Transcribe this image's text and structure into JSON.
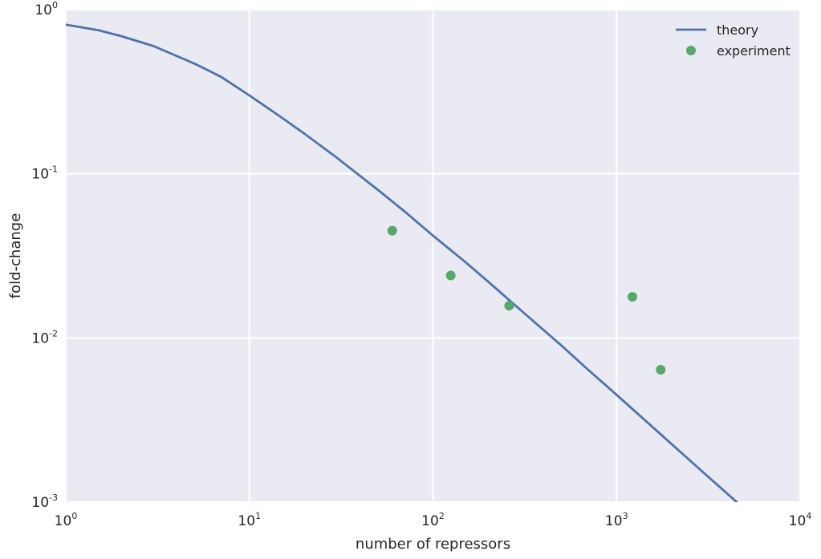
{
  "chart_data": {
    "type": "line",
    "xlabel": "number of repressors",
    "ylabel": "fold-change",
    "xscale": "log",
    "yscale": "log",
    "xlim": [
      1,
      10000
    ],
    "ylim": [
      0.001,
      1
    ],
    "grid": true,
    "legend_position": "top-right",
    "x_ticks": [
      {
        "base": "10",
        "exp": "0"
      },
      {
        "base": "10",
        "exp": "1"
      },
      {
        "base": "10",
        "exp": "2"
      },
      {
        "base": "10",
        "exp": "3"
      },
      {
        "base": "10",
        "exp": "4"
      }
    ],
    "y_ticks": [
      {
        "base": "10",
        "exp": "-3"
      },
      {
        "base": "10",
        "exp": "-2"
      },
      {
        "base": "10",
        "exp": "-1"
      },
      {
        "base": "10",
        "exp": "0"
      }
    ],
    "series": [
      {
        "name": "theory",
        "kind": "line",
        "color": "#4c72b0",
        "x": [
          1,
          1.5,
          2,
          3,
          5,
          7,
          10,
          15,
          20,
          30,
          50,
          70,
          100,
          150,
          200,
          300,
          500,
          700,
          1000,
          1500,
          2000,
          3000,
          4700
        ],
        "y": [
          0.81,
          0.75,
          0.69,
          0.6,
          0.47,
          0.39,
          0.3,
          0.22,
          0.175,
          0.125,
          0.08,
          0.059,
          0.042,
          0.029,
          0.022,
          0.0148,
          0.009,
          0.0064,
          0.0045,
          0.003,
          0.00225,
          0.0015,
          0.00096
        ]
      },
      {
        "name": "experiment",
        "kind": "scatter",
        "color": "#55a868",
        "x": [
          60,
          125,
          260,
          1220,
          1740
        ],
        "y": [
          0.045,
          0.024,
          0.0157,
          0.0178,
          0.0064
        ]
      }
    ]
  },
  "colors": {
    "plot_background": "#eaeaf2",
    "grid": "#ffffff",
    "text": "#262626"
  }
}
